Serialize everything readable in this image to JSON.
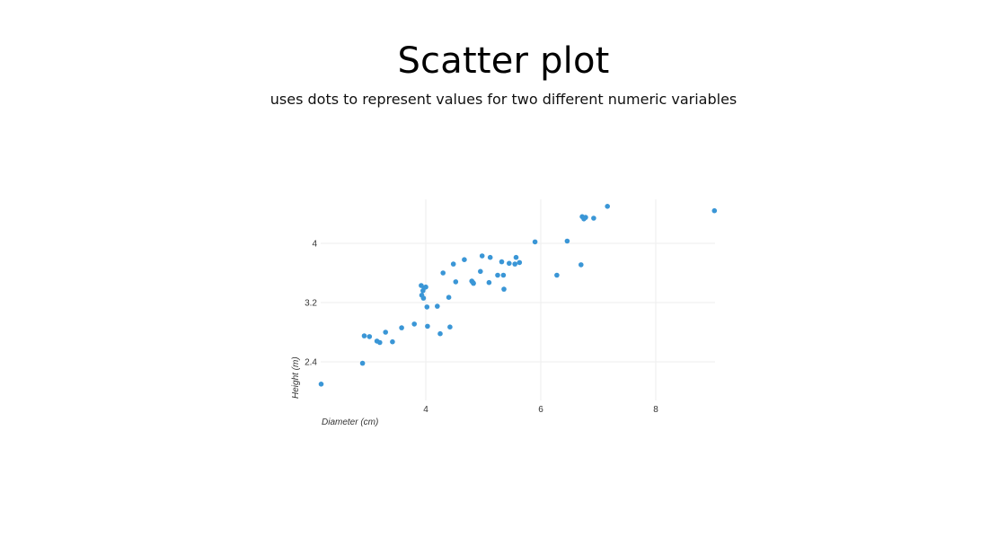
{
  "header": {
    "title": "Scatter plot",
    "subtitle": "uses dots to represent values for two different numeric variables"
  },
  "colors": {
    "point": "#3a96d6",
    "grid": "#eeeeee",
    "text": "#333333"
  },
  "chart_data": {
    "type": "scatter",
    "title": "",
    "xlabel": "Diameter (cm)",
    "ylabel": "Height (m)",
    "xlim": [
      2.18,
      9.02
    ],
    "ylim": [
      2.0,
      4.45
    ],
    "xticks": [
      4,
      6,
      8
    ],
    "yticks": [
      2.4,
      3.2,
      4
    ],
    "grid": true,
    "series": [
      {
        "x": [
          2.18,
          2.9,
          2.93,
          3.02,
          3.15,
          3.2,
          3.3,
          3.42,
          3.58,
          3.8,
          3.92,
          3.93,
          3.95,
          3.96,
          3.97,
          4.0,
          4.02,
          4.03,
          4.2,
          4.25,
          4.3,
          4.4,
          4.42,
          4.48,
          4.52,
          4.67,
          4.8,
          4.82,
          4.83,
          4.95,
          4.98,
          5.1,
          5.12,
          5.25,
          5.32,
          5.35,
          5.36,
          5.45,
          5.55,
          5.57,
          5.63,
          5.9,
          6.28,
          6.46,
          6.7,
          6.72,
          6.75,
          6.78,
          6.92,
          7.16,
          9.02
        ],
        "y": [
          2.1,
          2.38,
          2.75,
          2.74,
          2.68,
          2.66,
          2.8,
          2.67,
          2.86,
          2.91,
          3.43,
          3.3,
          3.36,
          3.26,
          3.4,
          3.41,
          3.14,
          2.88,
          3.15,
          2.78,
          3.6,
          3.27,
          2.87,
          3.72,
          3.48,
          3.78,
          3.49,
          3.47,
          3.46,
          3.62,
          3.83,
          3.47,
          3.81,
          3.57,
          3.75,
          3.57,
          3.38,
          3.73,
          3.72,
          3.81,
          3.74,
          4.02,
          3.57,
          4.03,
          3.71,
          4.36,
          4.33,
          4.35,
          4.34,
          4.5,
          4.44
        ]
      }
    ]
  }
}
